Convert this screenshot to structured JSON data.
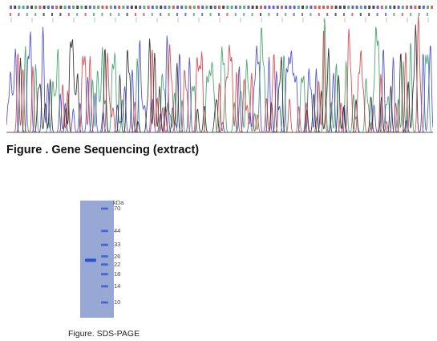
{
  "sequencing": {
    "title": "Figure . Gene Sequencing (extract)",
    "base_colors": {
      "A": "#2e9a5c",
      "C": "#3a3ad0",
      "G": "#1a1a1a",
      "T": "#d0343a"
    }
  },
  "gel": {
    "unit": "kDa",
    "caption": "Figure. SDS-PAGE",
    "markers": [
      {
        "label": "70",
        "kda": 70
      },
      {
        "label": "44",
        "kda": 44
      },
      {
        "label": "33",
        "kda": 33
      },
      {
        "label": "26",
        "kda": 26
      },
      {
        "label": "22",
        "kda": 22
      },
      {
        "label": "18",
        "kda": 18
      },
      {
        "label": "14",
        "kda": 14
      },
      {
        "label": "10",
        "kda": 10
      }
    ],
    "sample_band_kda": 24,
    "colors": {
      "gel": "#98a8d4",
      "band": "#2c4fd6"
    }
  }
}
